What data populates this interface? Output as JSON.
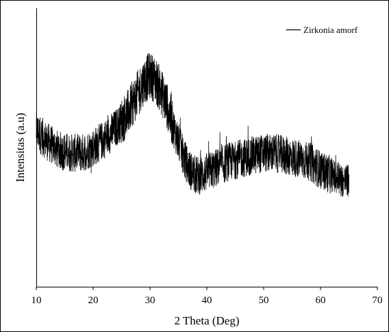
{
  "chart_data": {
    "type": "line",
    "title": "",
    "xlabel": "2 Theta (Deg)",
    "ylabel": "Intensitas (a.u)",
    "xlim": [
      10,
      70
    ],
    "x_ticks": [
      "10",
      "20",
      "30",
      "40",
      "50",
      "60",
      "70"
    ],
    "y_ticks_labeled": false,
    "grid": false,
    "legend_position": "top-right",
    "line_color": "#000000",
    "noise": "high",
    "series": [
      {
        "name": "Zirkonia amorf",
        "x": [
          10,
          12,
          14,
          16,
          18,
          20,
          22,
          24,
          26,
          27,
          28,
          29,
          30,
          31,
          32,
          33,
          34,
          35,
          36,
          37,
          38,
          39,
          40,
          42,
          44,
          46,
          48,
          50,
          52,
          54,
          56,
          58,
          60,
          62,
          64,
          65
        ],
        "y": [
          0.56,
          0.52,
          0.49,
          0.48,
          0.48,
          0.5,
          0.53,
          0.57,
          0.62,
          0.66,
          0.7,
          0.74,
          0.76,
          0.74,
          0.7,
          0.65,
          0.58,
          0.52,
          0.46,
          0.42,
          0.4,
          0.4,
          0.41,
          0.43,
          0.45,
          0.46,
          0.47,
          0.48,
          0.48,
          0.47,
          0.46,
          0.45,
          0.42,
          0.4,
          0.38,
          0.38
        ]
      }
    ]
  }
}
